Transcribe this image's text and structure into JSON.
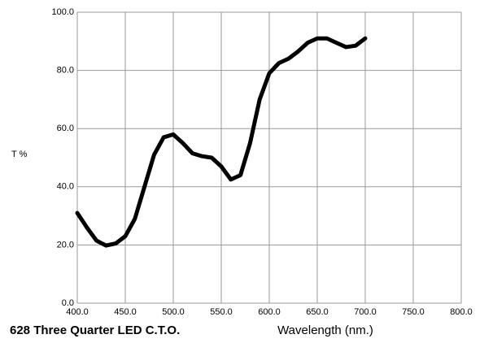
{
  "chart_data": {
    "type": "line",
    "title": "628 Three Quarter LED C.T.O.",
    "x_label": "Wavelength (nm.)",
    "y_label": "T %",
    "x": [
      400,
      410,
      420,
      430,
      440,
      450,
      460,
      470,
      480,
      490,
      500,
      510,
      520,
      530,
      540,
      550,
      560,
      570,
      580,
      590,
      600,
      610,
      620,
      630,
      640,
      650,
      660,
      670,
      680,
      690,
      700
    ],
    "series": [
      {
        "name": "628 Three Quarter LED C.T.O.",
        "color": "#000000",
        "values": [
          31,
          26,
          21.5,
          19.8,
          20.5,
          23,
          29,
          40,
          51,
          57,
          58,
          55,
          51.5,
          50.5,
          50,
          47,
          42.5,
          44,
          55,
          70,
          79,
          82.5,
          84,
          86.5,
          89.5,
          91,
          91,
          89.5,
          88,
          88.5,
          91
        ]
      }
    ],
    "xlim": [
      400,
      800
    ],
    "ylim": [
      0,
      100
    ],
    "xticks": [
      {
        "value": 400,
        "label": "400.0"
      },
      {
        "value": 450,
        "label": "450.0"
      },
      {
        "value": 500,
        "label": "500.0"
      },
      {
        "value": 550,
        "label": "550.0"
      },
      {
        "value": 600,
        "label": "600.0"
      },
      {
        "value": 650,
        "label": "650.0"
      },
      {
        "value": 700,
        "label": "700.0"
      },
      {
        "value": 750,
        "label": "750.0"
      },
      {
        "value": 800,
        "label": "800.0"
      }
    ],
    "yticks": [
      {
        "value": 0,
        "label": "0.0"
      },
      {
        "value": 20,
        "label": "20.0"
      },
      {
        "value": 40,
        "label": "40.0"
      },
      {
        "value": 60,
        "label": "60.0"
      },
      {
        "value": 80,
        "label": "80.0"
      },
      {
        "value": 100,
        "label": "100.0"
      }
    ],
    "grid": true
  }
}
